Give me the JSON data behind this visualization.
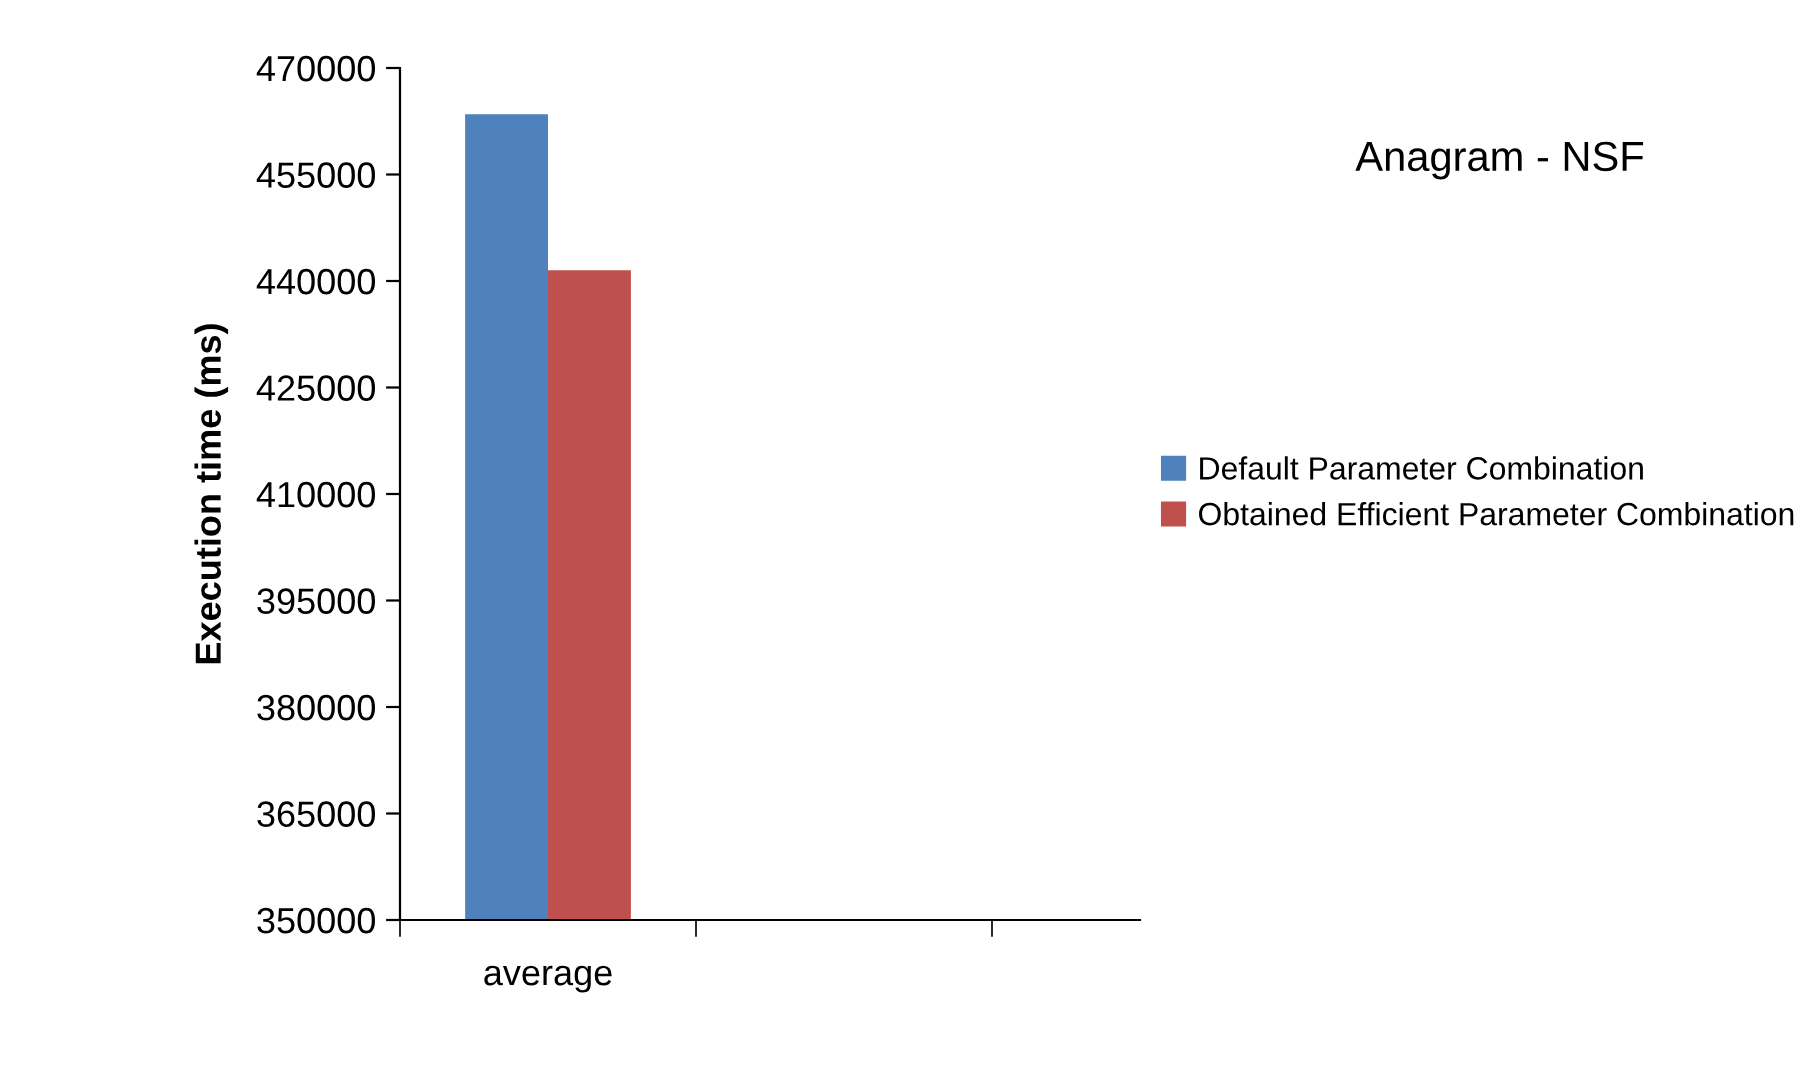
{
  "chart_data": {
    "type": "bar",
    "title": "Anagram - NSF",
    "ylabel": "Execution time (ms)",
    "categories": [
      "average",
      null
    ],
    "series": [
      {
        "name": "Default Parameter Combination",
        "color": "#4f81bd",
        "values": [
          463500,
          null
        ]
      },
      {
        "name": "Obtained Efficient Parameter Combination",
        "color": "#c0504d",
        "values": [
          441500,
          null
        ]
      }
    ],
    "ylim": [
      350000,
      470000
    ],
    "yticks": [
      350000,
      365000,
      380000,
      395000,
      410000,
      425000,
      440000,
      455000,
      470000
    ],
    "grid": false,
    "legend": "right"
  }
}
